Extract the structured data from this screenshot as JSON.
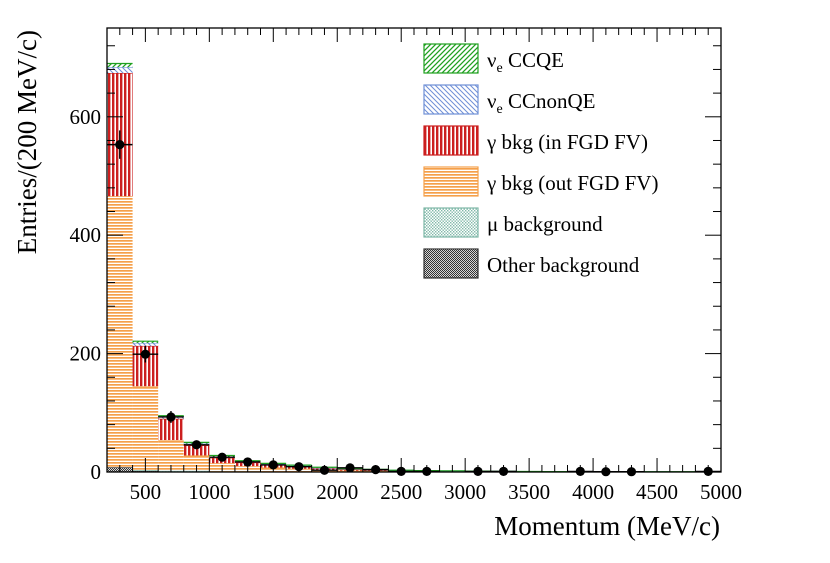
{
  "chart_data": {
    "type": "bar",
    "stacked": true,
    "xlabel": "Momentum (MeV/c)",
    "ylabel": "Entries/(200 MeV/c)",
    "xlim": [
      200,
      5000
    ],
    "ylim": [
      0,
      750
    ],
    "x_ticks": [
      500,
      1000,
      1500,
      2000,
      2500,
      3000,
      3500,
      4000,
      4500,
      5000
    ],
    "y_ticks": [
      0,
      200,
      400,
      600
    ],
    "bin_edges": [
      200,
      400,
      600,
      800,
      1000,
      1200,
      1400,
      1600,
      1800,
      2000,
      2200,
      2400,
      2600,
      2800,
      3000,
      3200,
      3400,
      3600,
      3800,
      4000,
      4200,
      4400,
      4600,
      4800,
      5000
    ],
    "legend_position": "top-right",
    "series": [
      {
        "key": "other",
        "name": "Other background",
        "color": "#333333",
        "pattern": "dots",
        "values": [
          8,
          2,
          1,
          1,
          0.5,
          0.5,
          0.3,
          0.3,
          0.2,
          0.2,
          0.2,
          0.1,
          0.1,
          0.1,
          0.1,
          0.1,
          0,
          0,
          0,
          0,
          0,
          0,
          0,
          0
        ]
      },
      {
        "key": "mu",
        "name": "μ background",
        "color": "#7fb8a8",
        "pattern": "fine",
        "values": [
          0,
          1,
          1,
          1,
          0.5,
          0.5,
          0.3,
          0.3,
          0.2,
          0.2,
          0.2,
          0.1,
          0.1,
          0.1,
          0.1,
          0,
          0,
          0,
          0,
          0,
          0,
          0,
          0,
          0
        ]
      },
      {
        "key": "out",
        "name": "γ bkg (out FGD FV)",
        "color": "#f5a04a",
        "pattern": "horizontal",
        "values": [
          458,
          142,
          52,
          26,
          14,
          9,
          7,
          5,
          3,
          2,
          1.5,
          1,
          0.8,
          0.6,
          0.5,
          0.4,
          0.3,
          0.3,
          0.2,
          0.2,
          0.2,
          0.2,
          0.1,
          0.1
        ]
      },
      {
        "key": "in",
        "name": "γ bkg (in FGD FV)",
        "color": "#cc1f1f",
        "pattern": "vertical",
        "values": [
          208,
          68,
          36,
          17,
          9,
          6,
          5,
          4,
          3,
          2,
          1.5,
          1,
          0.8,
          0.6,
          0.4,
          0.3,
          0.2,
          0.2,
          0.2,
          0.1,
          0.1,
          0.1,
          0.1,
          0.1
        ]
      },
      {
        "key": "ccnonqe",
        "name": "ν",
        "sub": "e",
        "name_rest": " CCnonQE",
        "color": "#6f8fd6",
        "pattern": "diagonal-back",
        "values": [
          10,
          5,
          3,
          3,
          2,
          1.5,
          1,
          1,
          0.8,
          0.6,
          0.5,
          0.4,
          0.3,
          0.3,
          0.2,
          0.2,
          0.2,
          0.1,
          0.1,
          0.1,
          0.1,
          0.1,
          0.1,
          0.1
        ]
      },
      {
        "key": "ccqe",
        "name": "ν",
        "sub": "e",
        "name_rest": " CCQE",
        "color": "#1fa01f",
        "pattern": "diagonal",
        "values": [
          6,
          3,
          2,
          2,
          2,
          1.5,
          1,
          1,
          0.8,
          0.6,
          0.5,
          0.4,
          0.3,
          0.3,
          0.2,
          0.2,
          0.2,
          0.1,
          0.1,
          0.1,
          0.1,
          0.1,
          0.1,
          0.1
        ]
      }
    ],
    "data_points": {
      "x": [
        300,
        500,
        700,
        900,
        1100,
        1300,
        1500,
        1700,
        1900,
        2100,
        2300,
        2500,
        2700,
        3100,
        3300,
        3900,
        4100,
        4300,
        4900
      ],
      "y": [
        553,
        199,
        93,
        46,
        25,
        17,
        12,
        9,
        3,
        7,
        4,
        1,
        1,
        1,
        1,
        1,
        0.5,
        0.5,
        1
      ],
      "yerr": [
        24,
        14,
        10,
        7,
        5,
        4,
        3.5,
        3,
        1.8,
        2.6,
        2,
        1,
        1,
        1,
        1,
        1,
        0.7,
        0.7,
        1
      ]
    }
  }
}
